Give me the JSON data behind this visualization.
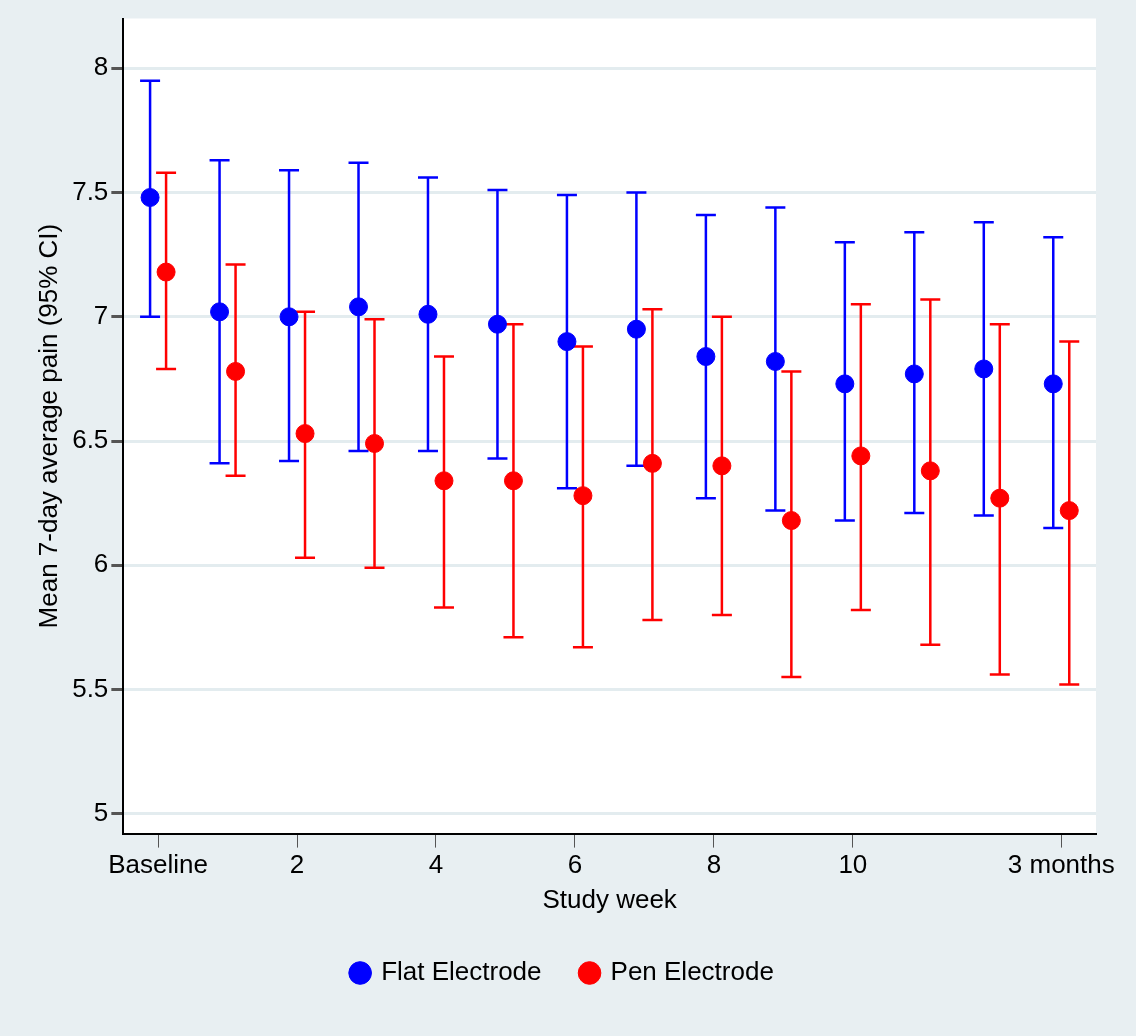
{
  "chart_data": {
    "type": "scatter",
    "xlabel": "Study week",
    "ylabel": "Mean 7-day average pain (95% CI)",
    "categories": [
      "Baseline",
      null,
      "2",
      null,
      "4",
      null,
      "6",
      null,
      "8",
      null,
      "10",
      null,
      null,
      "3 months"
    ],
    "series": [
      {
        "name": "Flat Electrode",
        "color": "#0000ff",
        "values": [
          7.48,
          7.02,
          7.0,
          7.04,
          7.01,
          6.97,
          6.9,
          6.95,
          6.84,
          6.82,
          6.73,
          6.77,
          6.79,
          6.73
        ],
        "errors": [
          [
            7.0,
            7.95
          ],
          [
            6.41,
            7.63
          ],
          [
            6.42,
            7.59
          ],
          [
            6.46,
            7.62
          ],
          [
            6.46,
            7.56
          ],
          [
            6.43,
            7.51
          ],
          [
            6.31,
            7.49
          ],
          [
            6.4,
            7.5
          ],
          [
            6.27,
            7.41
          ],
          [
            6.22,
            7.44
          ],
          [
            6.18,
            7.3
          ],
          [
            6.21,
            7.34
          ],
          [
            6.2,
            7.38
          ],
          [
            6.15,
            7.32
          ]
        ]
      },
      {
        "name": "Pen Electrode",
        "color": "#ff0000",
        "values": [
          7.18,
          6.78,
          6.53,
          6.49,
          6.34,
          6.34,
          6.28,
          6.41,
          6.4,
          6.18,
          6.44,
          6.38,
          6.27,
          6.22
        ],
        "errors": [
          [
            6.79,
            7.58
          ],
          [
            6.36,
            7.21
          ],
          [
            6.03,
            7.02
          ],
          [
            5.99,
            6.99
          ],
          [
            5.83,
            6.84
          ],
          [
            5.71,
            6.97
          ],
          [
            5.67,
            6.88
          ],
          [
            5.78,
            7.03
          ],
          [
            5.8,
            7.0
          ],
          [
            5.55,
            6.78
          ],
          [
            5.82,
            7.05
          ],
          [
            5.68,
            7.07
          ],
          [
            5.56,
            6.97
          ],
          [
            5.52,
            6.9
          ]
        ]
      }
    ],
    "ylim": [
      4.92,
      8.2
    ],
    "yticks": [
      5,
      5.5,
      6,
      6.5,
      7,
      7.5,
      8
    ],
    "grid": "y",
    "legend": "bottom",
    "marker": "circle"
  }
}
